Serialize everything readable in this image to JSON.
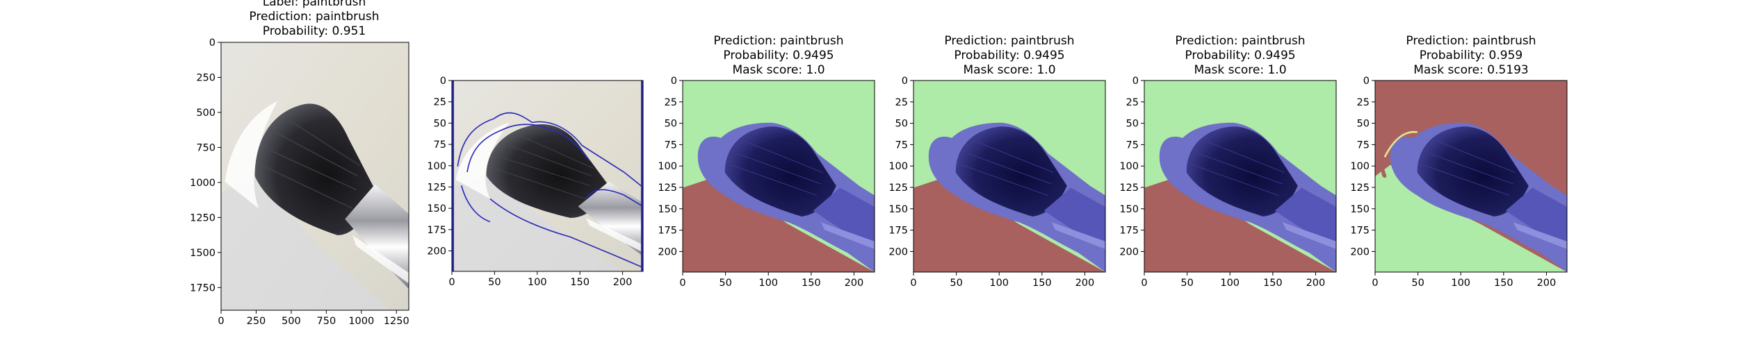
{
  "figure": {
    "panels": [
      {
        "id": "p1",
        "title_lines": [
          "Label: paintbrush",
          "Prediction: paintbrush",
          "Probability: 0.951"
        ],
        "xticks": [
          "0",
          "250",
          "500",
          "750",
          "1000",
          "1250"
        ],
        "yticks": [
          "0",
          "250",
          "500",
          "750",
          "1000",
          "1250",
          "1500",
          "1750"
        ]
      },
      {
        "id": "p2",
        "title_lines": [],
        "xticks": [
          "0",
          "50",
          "100",
          "150",
          "200"
        ],
        "yticks": [
          "0",
          "25",
          "50",
          "75",
          "100",
          "125",
          "150",
          "175",
          "200"
        ]
      },
      {
        "id": "p3",
        "title_lines": [
          "Prediction: paintbrush",
          "Probability: 0.9495",
          "Mask score: 1.0"
        ],
        "xticks": [
          "0",
          "50",
          "100",
          "150",
          "200"
        ],
        "yticks": [
          "0",
          "25",
          "50",
          "75",
          "100",
          "125",
          "150",
          "175",
          "200"
        ]
      },
      {
        "id": "p4",
        "title_lines": [
          "Prediction: paintbrush",
          "Probability: 0.9495",
          "Mask score: 1.0"
        ],
        "xticks": [
          "0",
          "50",
          "100",
          "150",
          "200"
        ],
        "yticks": [
          "0",
          "25",
          "50",
          "75",
          "100",
          "125",
          "150",
          "175",
          "200"
        ]
      },
      {
        "id": "p5",
        "title_lines": [
          "Prediction: paintbrush",
          "Probability: 0.9495",
          "Mask score: 1.0"
        ],
        "xticks": [
          "0",
          "50",
          "100",
          "150",
          "200"
        ],
        "yticks": [
          "0",
          "25",
          "50",
          "75",
          "100",
          "125",
          "150",
          "175",
          "200"
        ]
      },
      {
        "id": "p6",
        "title_lines": [
          "Prediction: paintbrush",
          "Probability: 0.959",
          "Mask score: 0.5193"
        ],
        "xticks": [
          "0",
          "50",
          "100",
          "150",
          "200"
        ],
        "yticks": [
          "0",
          "25",
          "50",
          "75",
          "100",
          "125",
          "150",
          "175",
          "200"
        ]
      }
    ],
    "colors": {
      "mask_green": "#aeeaa8",
      "mask_red": "#a8615f",
      "brush_blue": "#6f70c8",
      "contour_blue": "#2b2bb8"
    }
  }
}
